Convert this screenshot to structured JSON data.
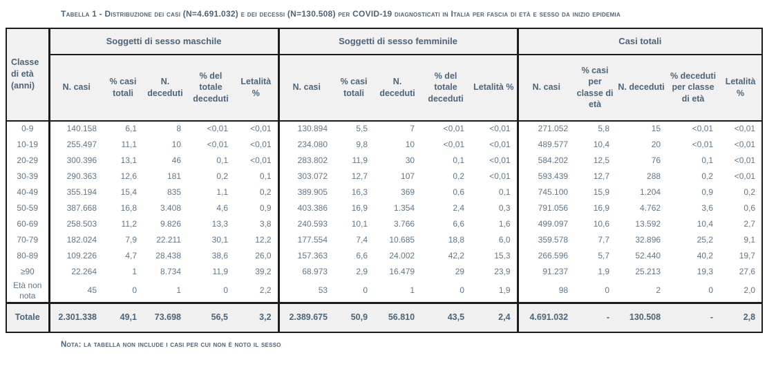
{
  "title": "Tabella 1 - Distribuzione dei casi (N=4.691.032) e dei decessi (N=130.508) per COVID-19 diagnosticati in Italia per fascia di età e sesso da inizio epidemia",
  "note": "Nota: la tabella non include i casi per cui non è noto il sesso",
  "colors": {
    "text_heading": "#4c6579",
    "text_data": "#5f7689",
    "border": "#1c1c1c",
    "header_background": "#f1f1f1",
    "total_row_background": "#f0f0f0"
  },
  "table": {
    "corner_header": "Classe di età (anni)",
    "groups": [
      {
        "label": "Soggetti di sesso maschile",
        "columns": [
          "N. casi",
          "% casi totali",
          "N. deceduti",
          "% del totale deceduti",
          "Letalità %"
        ]
      },
      {
        "label": "Soggetti di sesso femminile",
        "columns": [
          "N. casi",
          "% casi totali",
          "N. deceduti",
          "% del totale deceduti",
          "Letalità %"
        ]
      },
      {
        "label": "Casi totali",
        "columns": [
          "N. casi",
          "% casi per classe di età",
          "N. deceduti",
          "% deceduti per classe di età",
          "Letalità %"
        ]
      }
    ],
    "rows": [
      {
        "age": "0-9",
        "male": [
          "140.158",
          "6,1",
          "8",
          "<0,01",
          "<0,01"
        ],
        "female": [
          "130.894",
          "5,5",
          "7",
          "<0,01",
          "<0,01"
        ],
        "total": [
          "271.052",
          "5,8",
          "15",
          "<0,01",
          "<0,01"
        ]
      },
      {
        "age": "10-19",
        "male": [
          "255.497",
          "11,1",
          "10",
          "<0,01",
          "<0,01"
        ],
        "female": [
          "234.080",
          "9,8",
          "10",
          "<0,01",
          "<0,01"
        ],
        "total": [
          "489.577",
          "10,4",
          "20",
          "<0,01",
          "<0,01"
        ]
      },
      {
        "age": "20-29",
        "male": [
          "300.396",
          "13,1",
          "46",
          "0,1",
          "<0,01"
        ],
        "female": [
          "283.802",
          "11,9",
          "30",
          "0,1",
          "<0,01"
        ],
        "total": [
          "584.202",
          "12,5",
          "76",
          "0,1",
          "<0,01"
        ]
      },
      {
        "age": "30-39",
        "male": [
          "290.363",
          "12,6",
          "181",
          "0,2",
          "0,1"
        ],
        "female": [
          "303.072",
          "12,7",
          "107",
          "0,2",
          "<0,01"
        ],
        "total": [
          "593.439",
          "12,7",
          "288",
          "0,2",
          "<0,01"
        ]
      },
      {
        "age": "40-49",
        "male": [
          "355.194",
          "15,4",
          "835",
          "1,1",
          "0,2"
        ],
        "female": [
          "389.905",
          "16,3",
          "369",
          "0,6",
          "0,1"
        ],
        "total": [
          "745.100",
          "15,9",
          "1.204",
          "0,9",
          "0,2"
        ]
      },
      {
        "age": "50-59",
        "male": [
          "387.668",
          "16,8",
          "3.408",
          "4,6",
          "0,9"
        ],
        "female": [
          "403.386",
          "16,9",
          "1.354",
          "2,4",
          "0,3"
        ],
        "total": [
          "791.056",
          "16,9",
          "4.762",
          "3,6",
          "0,6"
        ]
      },
      {
        "age": "60-69",
        "male": [
          "258.503",
          "11,2",
          "9.826",
          "13,3",
          "3,8"
        ],
        "female": [
          "240.593",
          "10,1",
          "3.766",
          "6,6",
          "1,6"
        ],
        "total": [
          "499.097",
          "10,6",
          "13.592",
          "10,4",
          "2,7"
        ]
      },
      {
        "age": "70-79",
        "male": [
          "182.024",
          "7,9",
          "22.211",
          "30,1",
          "12,2"
        ],
        "female": [
          "177.554",
          "7,4",
          "10.685",
          "18,8",
          "6,0"
        ],
        "total": [
          "359.578",
          "7,7",
          "32.896",
          "25,2",
          "9,1"
        ]
      },
      {
        "age": "80-89",
        "male": [
          "109.226",
          "4,7",
          "28.438",
          "38,6",
          "26,0"
        ],
        "female": [
          "157.363",
          "6,6",
          "24.002",
          "42,2",
          "15,3"
        ],
        "total": [
          "266.596",
          "5,7",
          "52.440",
          "40,2",
          "19,7"
        ]
      },
      {
        "age": "≥90",
        "male": [
          "22.264",
          "1",
          "8.734",
          "11,9",
          "39,2"
        ],
        "female": [
          "68.973",
          "2,9",
          "16.479",
          "29",
          "23,9"
        ],
        "total": [
          "91.237",
          "1,9",
          "25.213",
          "19,3",
          "27,6"
        ]
      },
      {
        "age": "Età non nota",
        "male": [
          "45",
          "0",
          "1",
          "0",
          "2,2"
        ],
        "female": [
          "53",
          "0",
          "1",
          "0",
          "1,9"
        ],
        "total": [
          "98",
          "0",
          "2",
          "0",
          "2,0"
        ]
      }
    ],
    "total_row": {
      "age": "Totale",
      "male": [
        "2.301.338",
        "49,1",
        "73.698",
        "56,5",
        "3,2"
      ],
      "female": [
        "2.389.675",
        "50,9",
        "56.810",
        "43,5",
        "2,4"
      ],
      "total": [
        "4.691.032",
        "-",
        "130.508",
        "-",
        "2,8"
      ]
    }
  }
}
